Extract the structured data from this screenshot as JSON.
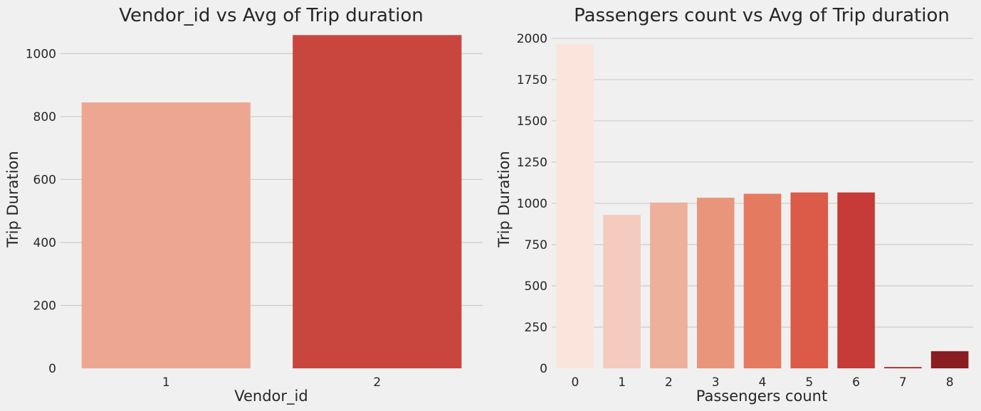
{
  "chart_data": [
    {
      "type": "bar",
      "title": "Vendor_id vs Avg of Trip duration",
      "xlabel": "Vendor_id",
      "ylabel": "Trip Duration",
      "categories": [
        "1",
        "2"
      ],
      "values": [
        845,
        1059
      ],
      "colors": [
        "#eda791",
        "#c9463e"
      ],
      "ylim": [
        0,
        1080
      ],
      "yticks": [
        0,
        200,
        400,
        600,
        800,
        1000
      ],
      "grid": "y"
    },
    {
      "type": "bar",
      "title": "Passengers count vs Avg of Trip duration",
      "xlabel": "Passengers count",
      "ylabel": "Trip Duration",
      "categories": [
        "0",
        "1",
        "2",
        "3",
        "4",
        "5",
        "6",
        "7",
        "8"
      ],
      "values": [
        1966,
        930,
        1005,
        1034,
        1058,
        1066,
        1066,
        8,
        104
      ],
      "colors": [
        "#fae4dc",
        "#f4cbbe",
        "#edb09b",
        "#e8957b",
        "#e47a60",
        "#db5a48",
        "#c63b37",
        "#b5282b",
        "#891d22"
      ],
      "ylim": [
        0,
        2060
      ],
      "yticks": [
        0,
        250,
        500,
        750,
        1000,
        1250,
        1500,
        1750,
        2000
      ],
      "grid": "y"
    }
  ]
}
